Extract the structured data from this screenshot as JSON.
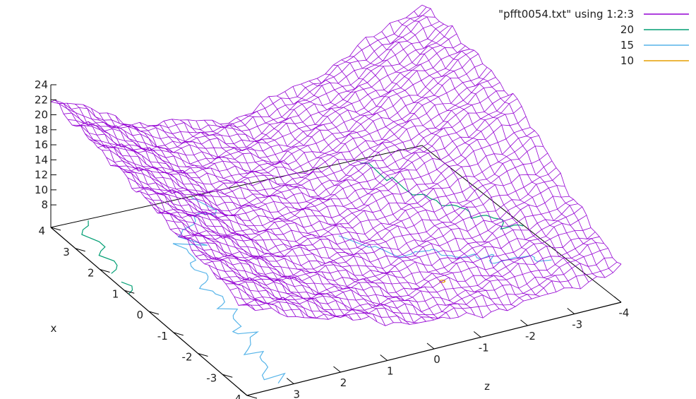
{
  "chart_data": {
    "type": "surface3d",
    "title": "",
    "axes": {
      "x": {
        "label": "x",
        "range": [
          -4,
          4
        ],
        "ticks": [
          4,
          3,
          2,
          1,
          0,
          -1,
          -2,
          -3,
          -4
        ]
      },
      "y": {
        "label": "z",
        "range": [
          -4,
          4
        ],
        "ticks": [
          4,
          3,
          2,
          1,
          0,
          -1,
          -2,
          -3,
          -4
        ]
      },
      "z": {
        "label": "",
        "range": [
          5,
          24
        ],
        "ticks": [
          8,
          10,
          12,
          14,
          16,
          18,
          20,
          22,
          24
        ]
      }
    },
    "grid": false,
    "legend_position": "top-right",
    "series": [
      {
        "name": "\"pfft0054.txt\" using 1:2:3",
        "kind": "surface",
        "color": "#9400d3"
      },
      {
        "name": "20",
        "kind": "contour",
        "level": 20,
        "color": "#009e73"
      },
      {
        "name": "15",
        "kind": "contour",
        "level": 15,
        "color": "#56b4e9"
      },
      {
        "name": "10",
        "kind": "contour",
        "level": 10,
        "color": "#e69f00"
      }
    ],
    "surface_samples": {
      "x": [
        -4,
        -2,
        0,
        2,
        4
      ],
      "y": [
        -4,
        -2,
        0,
        2,
        4
      ],
      "z_rows_by_x": [
        [
          9.5,
          8.0,
          8.5,
          12.0,
          16.5
        ],
        [
          14.0,
          11.5,
          10.5,
          12.5,
          18.0
        ],
        [
          20.5,
          16.0,
          13.0,
          13.5,
          19.5
        ],
        [
          23.0,
          17.5,
          13.5,
          14.5,
          21.0
        ],
        [
          24.0,
          18.0,
          14.0,
          16.0,
          22.0
        ]
      ]
    }
  }
}
